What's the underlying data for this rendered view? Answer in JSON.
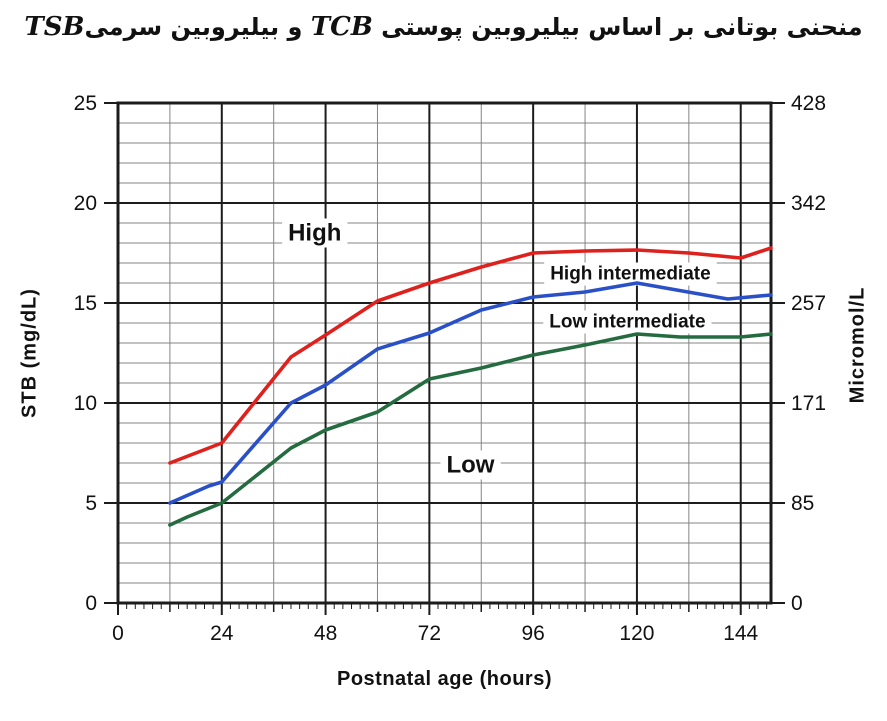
{
  "title": {
    "part1": "منحنی بوتانی بر اساس بیلیروبین پوستی",
    "tcb": "TCB",
    "part2": "و بیلیروبین سرمی",
    "tsb": "TSB"
  },
  "chart_data": {
    "type": "line",
    "xlabel": "Postnatal age (hours)",
    "ylabel_left": "STB (mg/dL)",
    "ylabel_right": "Micromol/L",
    "x_axis": {
      "min": 0,
      "max": 151,
      "major_ticks": [
        0,
        24,
        48,
        72,
        96,
        120,
        144
      ],
      "medium_tick_step": 12,
      "minor_tick_step": 2,
      "grid_step": 12,
      "major_grid_step": 24
    },
    "y_axis_left": {
      "min": 0,
      "max": 25,
      "ticks": [
        0,
        5,
        10,
        15,
        20,
        25
      ],
      "minor_grid_step": 1,
      "major_grid_step": 5
    },
    "y_axis_right": {
      "ticks": [
        {
          "label": "428",
          "at": 25
        },
        {
          "label": "342",
          "at": 20
        },
        {
          "label": "257",
          "at": 15
        },
        {
          "label": "171",
          "at": 10
        },
        {
          "label": "85",
          "at": 5
        },
        {
          "label": "0",
          "at": 0
        }
      ]
    },
    "grid": true,
    "series": [
      {
        "name": "High",
        "color": "#df211e",
        "points": [
          [
            12,
            7.0
          ],
          [
            24,
            8.0
          ],
          [
            40,
            12.3
          ],
          [
            48,
            13.4
          ],
          [
            60,
            15.1
          ],
          [
            72,
            16.0
          ],
          [
            84,
            16.8
          ],
          [
            96,
            17.5
          ],
          [
            108,
            17.6
          ],
          [
            120,
            17.65
          ],
          [
            132,
            17.5
          ],
          [
            144,
            17.25
          ],
          [
            151,
            17.75
          ]
        ]
      },
      {
        "name": "High intermediate",
        "color": "#2a50c8",
        "points": [
          [
            12,
            5.0
          ],
          [
            21,
            5.85
          ],
          [
            24,
            6.05
          ],
          [
            40,
            10.0
          ],
          [
            48,
            10.9
          ],
          [
            60,
            12.7
          ],
          [
            72,
            13.5
          ],
          [
            84,
            14.65
          ],
          [
            96,
            15.3
          ],
          [
            108,
            15.55
          ],
          [
            120,
            16.0
          ],
          [
            141,
            15.2
          ],
          [
            151,
            15.4
          ]
        ]
      },
      {
        "name": "Low intermediate",
        "color": "#256b40",
        "points": [
          [
            12,
            3.9
          ],
          [
            16,
            4.3
          ],
          [
            20,
            4.65
          ],
          [
            24,
            5.0
          ],
          [
            40,
            7.75
          ],
          [
            48,
            8.65
          ],
          [
            60,
            9.55
          ],
          [
            72,
            11.2
          ],
          [
            84,
            11.75
          ],
          [
            96,
            12.4
          ],
          [
            108,
            12.9
          ],
          [
            120,
            13.45
          ],
          [
            130,
            13.3
          ],
          [
            144,
            13.3
          ],
          [
            151,
            13.45
          ]
        ]
      }
    ],
    "annotations": [
      {
        "id": "high",
        "text": "High",
        "x_hours": 45.5,
        "y_mgdl": 18.5,
        "size": "large"
      },
      {
        "id": "high-intermediate",
        "text": "High intermediate",
        "x_hours": 118.5,
        "y_mgdl": 16.45,
        "size": "small"
      },
      {
        "id": "low-intermediate",
        "text": "Low intermediate",
        "x_hours": 117.8,
        "y_mgdl": 14.05,
        "size": "small"
      },
      {
        "id": "low",
        "text": "Low",
        "x_hours": 81.5,
        "y_mgdl": 6.9,
        "size": "large"
      }
    ],
    "colors": {
      "grid_minor": "#858585",
      "grid_major": "#1c1c1c",
      "axis": "#1c1c1c",
      "text": "#111111"
    }
  }
}
